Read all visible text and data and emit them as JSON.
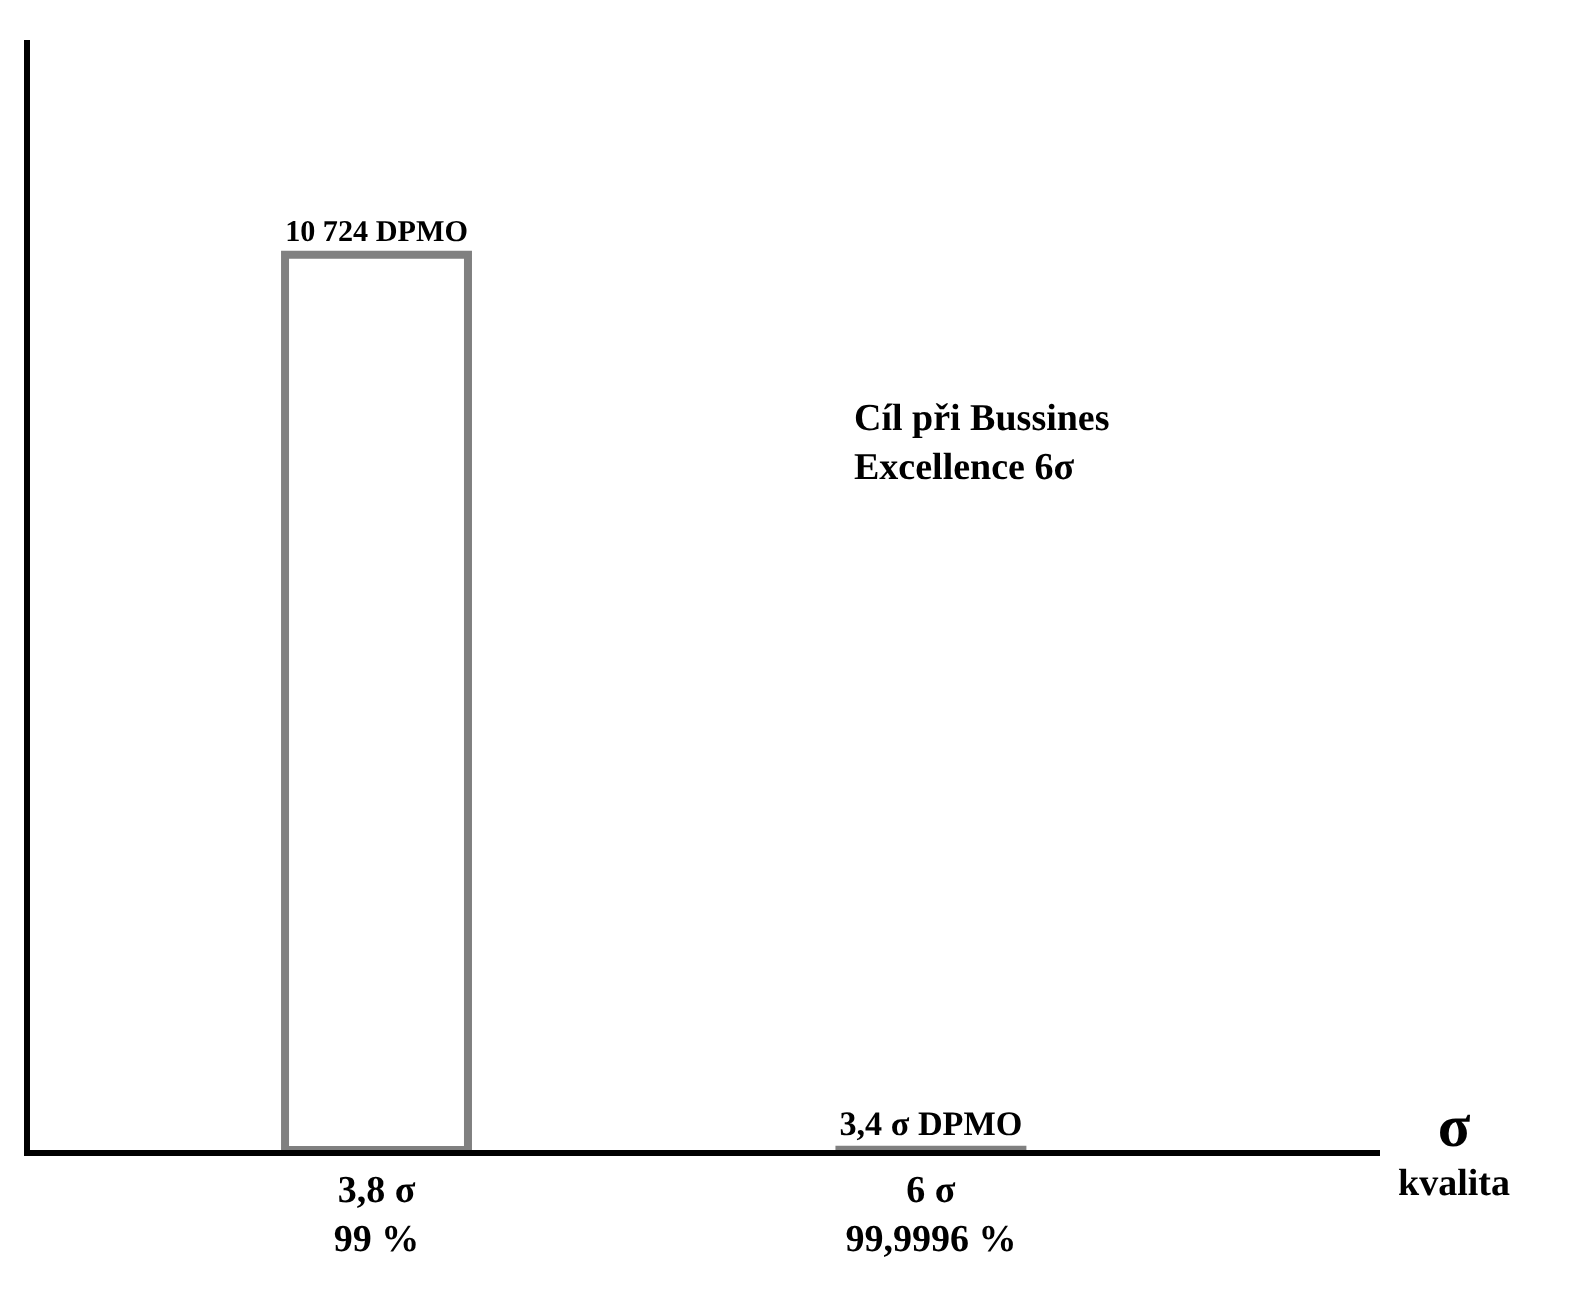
{
  "chart_data": {
    "type": "bar",
    "categories": [
      "3,8 σ\n99 %",
      "6 σ\n99,9996 %"
    ],
    "values": [
      10724,
      3.4
    ],
    "value_labels": [
      "10 724 DPMO",
      "3,4 σ DPMO"
    ],
    "color": "#808080",
    "xlabel": "σ\nkvalita",
    "annotations": [
      "Cíl při Bussines\nExcellence 6σ"
    ]
  }
}
